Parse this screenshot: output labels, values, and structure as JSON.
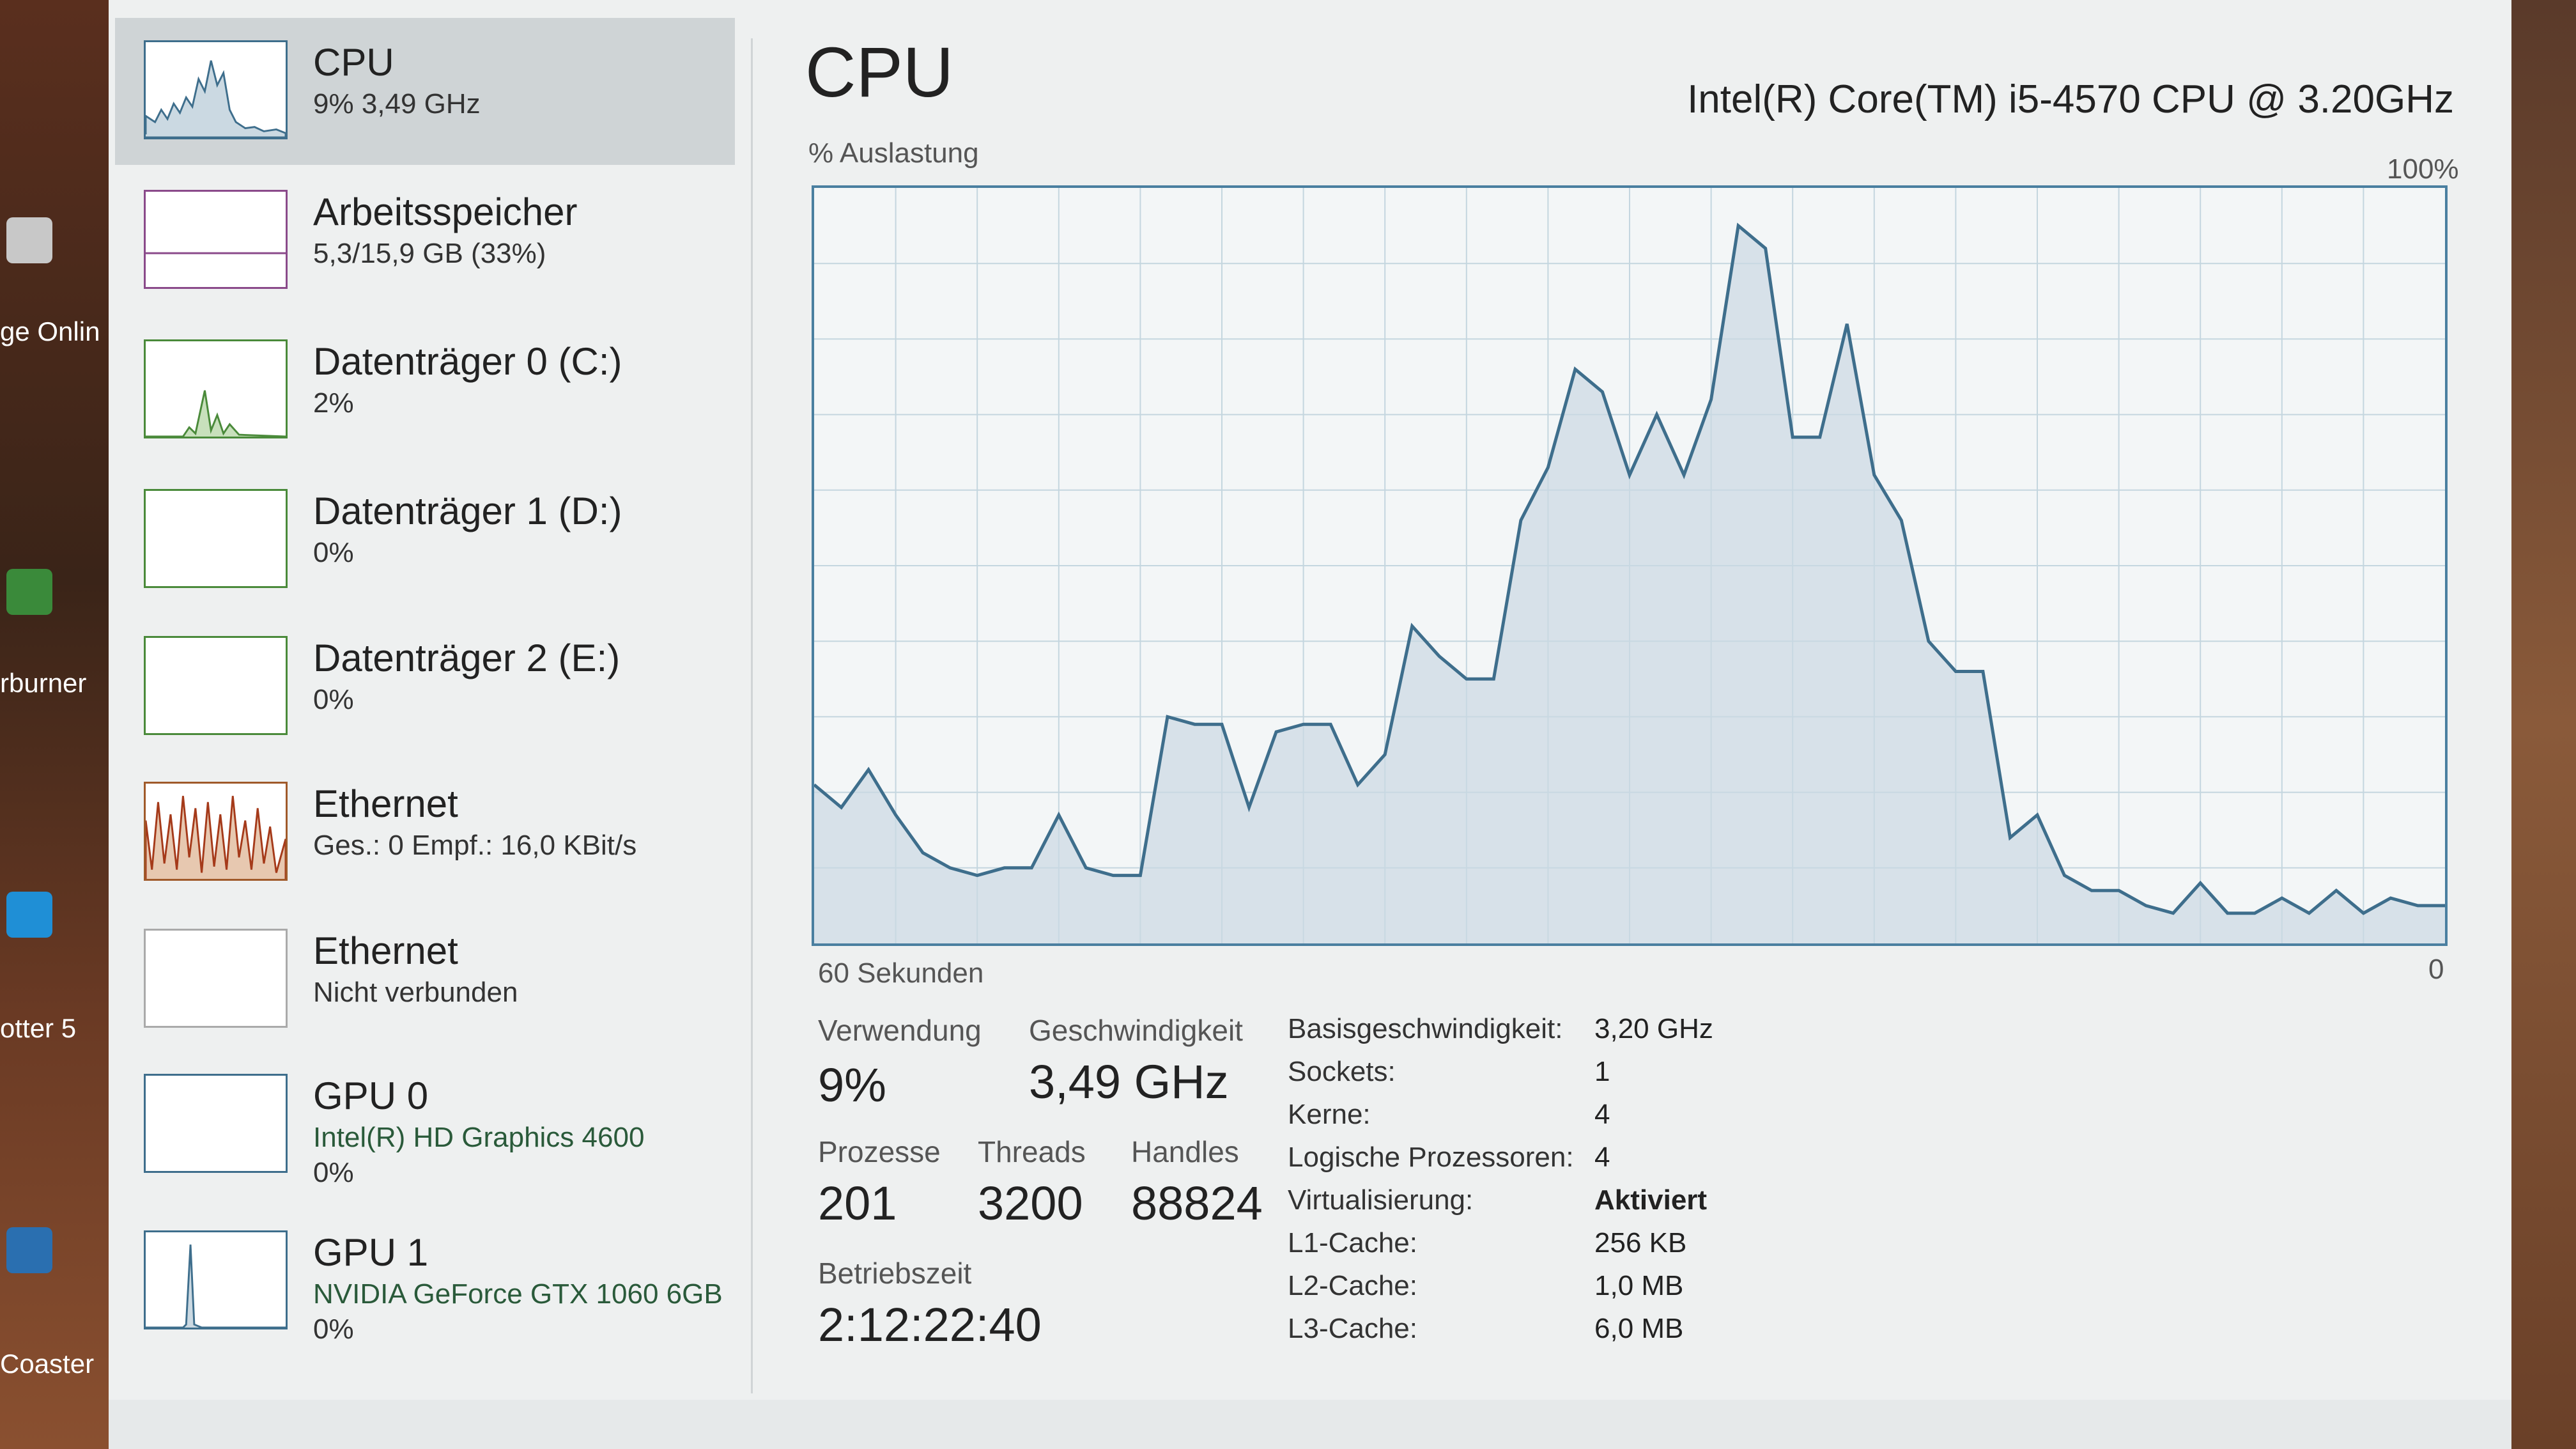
{
  "desktop": {
    "labels": [
      "ge Onlin",
      "rburner",
      "otter 5",
      "Coaster"
    ]
  },
  "sidebar": {
    "items": [
      {
        "title": "CPU",
        "sub": "9% 3,49 GHz",
        "sub2": ""
      },
      {
        "title": "Arbeitsspeicher",
        "sub": "5,3/15,9 GB (33%)",
        "sub2": ""
      },
      {
        "title": "Datenträger 0 (C:)",
        "sub": "2%",
        "sub2": ""
      },
      {
        "title": "Datenträger 1 (D:)",
        "sub": "0%",
        "sub2": ""
      },
      {
        "title": "Datenträger 2 (E:)",
        "sub": "0%",
        "sub2": ""
      },
      {
        "title": "Ethernet",
        "sub": "Ges.: 0 Empf.: 16,0 KBit/s",
        "sub2": ""
      },
      {
        "title": "Ethernet",
        "sub": "Nicht verbunden",
        "sub2": ""
      },
      {
        "title": "GPU 0",
        "sub": "Intel(R) HD Graphics 4600",
        "sub2": "0%"
      },
      {
        "title": "GPU 1",
        "sub": "NVIDIA GeForce GTX 1060 6GB",
        "sub2": "0%"
      }
    ]
  },
  "main": {
    "title": "CPU",
    "cpu_model": "Intel(R) Core(TM) i5-4570 CPU @ 3.20GHz",
    "graph_ylabel": "% Auslastung",
    "graph_max": "100%",
    "graph_xlabel": "60 Sekunden",
    "graph_min": "0"
  },
  "stats": {
    "usage_label": "Verwendung",
    "usage_value": "9%",
    "speed_label": "Geschwindigkeit",
    "speed_value": "3,49 GHz",
    "processes_label": "Prozesse",
    "processes_value": "201",
    "threads_label": "Threads",
    "threads_value": "3200",
    "handles_label": "Handles",
    "handles_value": "88824",
    "uptime_label": "Betriebszeit",
    "uptime_value": "2:12:22:40"
  },
  "details": [
    {
      "key": "Basisgeschwindigkeit:",
      "value": "3,20 GHz"
    },
    {
      "key": "Sockets:",
      "value": "1"
    },
    {
      "key": "Kerne:",
      "value": "4"
    },
    {
      "key": "Logische Prozessoren:",
      "value": "4"
    },
    {
      "key": "Virtualisierung:",
      "value": "Aktiviert"
    },
    {
      "key": "L1-Cache:",
      "value": "256 KB"
    },
    {
      "key": "L2-Cache:",
      "value": "1,0 MB"
    },
    {
      "key": "L3-Cache:",
      "value": "6,0 MB"
    }
  ],
  "chart_data": {
    "type": "area",
    "ylabel": "% Auslastung",
    "xlabel": "60 Sekunden",
    "ylim": [
      0,
      100
    ],
    "grid": true,
    "values": [
      21,
      18,
      23,
      17,
      12,
      10,
      9,
      10,
      10,
      17,
      10,
      9,
      9,
      30,
      29,
      29,
      18,
      28,
      29,
      29,
      21,
      25,
      42,
      38,
      35,
      35,
      56,
      63,
      76,
      73,
      62,
      70,
      62,
      72,
      95,
      92,
      67,
      67,
      82,
      62,
      56,
      40,
      36,
      36,
      14,
      17,
      9,
      7,
      7,
      5,
      4,
      8,
      4,
      4,
      6,
      4,
      7,
      4,
      6,
      5,
      5
    ],
    "colors": {
      "line": "#3e6e8c",
      "fill": "#cbd9e2",
      "grid": "#c4d6df"
    }
  }
}
